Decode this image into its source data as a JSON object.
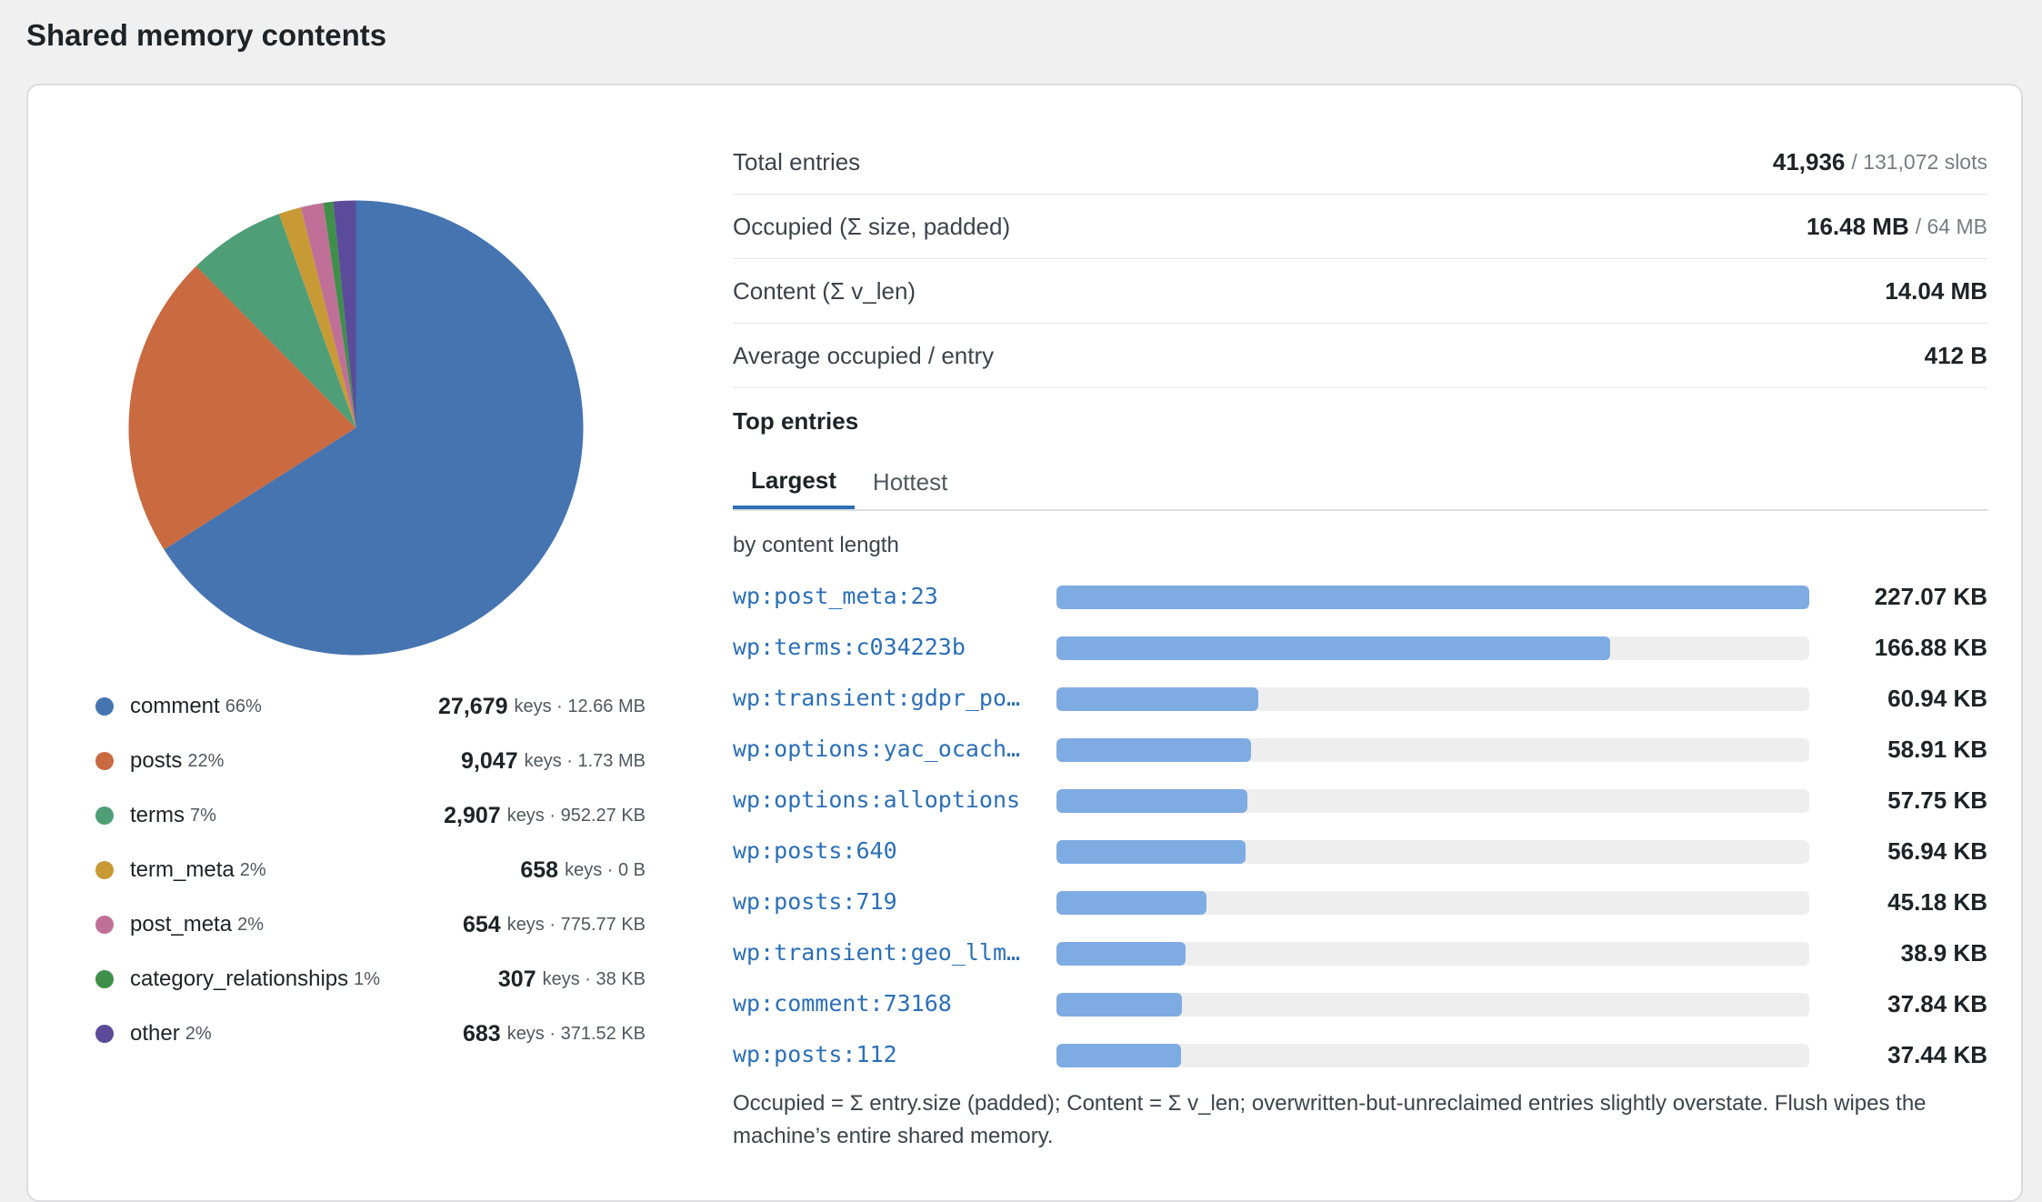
{
  "page": {
    "title": "Shared memory contents"
  },
  "breakdown": {
    "categories": [
      {
        "name": "comment",
        "pct": "66%",
        "count": "27,679",
        "meta": "keys · 12.66 MB",
        "color": "#4674b1",
        "share": 66.0
      },
      {
        "name": "posts",
        "pct": "22%",
        "count": "9,047",
        "meta": "keys · 1.73 MB",
        "color": "#c96a41",
        "share": 21.6
      },
      {
        "name": "terms",
        "pct": "7%",
        "count": "2,907",
        "meta": "keys · 952.27 KB",
        "color": "#4e9e78",
        "share": 6.9
      },
      {
        "name": "term_meta",
        "pct": "2%",
        "count": "658",
        "meta": "keys · 0 B",
        "color": "#c79a36",
        "share": 1.6
      },
      {
        "name": "post_meta",
        "pct": "2%",
        "count": "654",
        "meta": "keys · 775.77 KB",
        "color": "#c07096",
        "share": 1.6
      },
      {
        "name": "category_relationships",
        "pct": "1%",
        "count": "307",
        "meta": "keys · 38 KB",
        "color": "#3f8f4a",
        "share": 0.7
      },
      {
        "name": "other",
        "pct": "2%",
        "count": "683",
        "meta": "keys · 371.52 KB",
        "color": "#5b4b9a",
        "share": 1.6
      }
    ]
  },
  "stats": {
    "total_entries": {
      "label": "Total entries",
      "value": "41,936",
      "sub": "/ 131,072 slots"
    },
    "occupied": {
      "label": "Occupied (Σ size, padded)",
      "value": "16.48 MB",
      "sub": "/ 64 MB"
    },
    "content": {
      "label": "Content (Σ v_len)",
      "value": "14.04 MB"
    },
    "average": {
      "label": "Average occupied / entry",
      "value": "412 B"
    }
  },
  "top_entries": {
    "heading": "Top entries",
    "tabs": [
      {
        "label": "Largest",
        "active": true
      },
      {
        "label": "Hottest",
        "active": false
      }
    ],
    "caption": "by content length",
    "rows": [
      {
        "key": "wp:post_meta:23",
        "size": "227.07 KB",
        "fraction": 1.0
      },
      {
        "key": "wp:terms:c034223b",
        "size": "166.88 KB",
        "fraction": 0.735
      },
      {
        "key": "wp:transient:gdpr_po…",
        "size": "60.94 KB",
        "fraction": 0.268
      },
      {
        "key": "wp:options:yac_ocach…",
        "size": "58.91 KB",
        "fraction": 0.259
      },
      {
        "key": "wp:options:alloptions",
        "size": "57.75 KB",
        "fraction": 0.254
      },
      {
        "key": "wp:posts:640",
        "size": "56.94 KB",
        "fraction": 0.251
      },
      {
        "key": "wp:posts:719",
        "size": "45.18 KB",
        "fraction": 0.199
      },
      {
        "key": "wp:transient:geo_llm…",
        "size": "38.9 KB",
        "fraction": 0.171
      },
      {
        "key": "wp:comment:73168",
        "size": "37.84 KB",
        "fraction": 0.167
      },
      {
        "key": "wp:posts:112",
        "size": "37.44 KB",
        "fraction": 0.165
      }
    ]
  },
  "footnote": "Occupied = Σ entry.size (padded); Content = Σ v_len; overwritten-but-unreclaimed entries slightly overstate. Flush wipes the machine’s entire shared memory."
}
